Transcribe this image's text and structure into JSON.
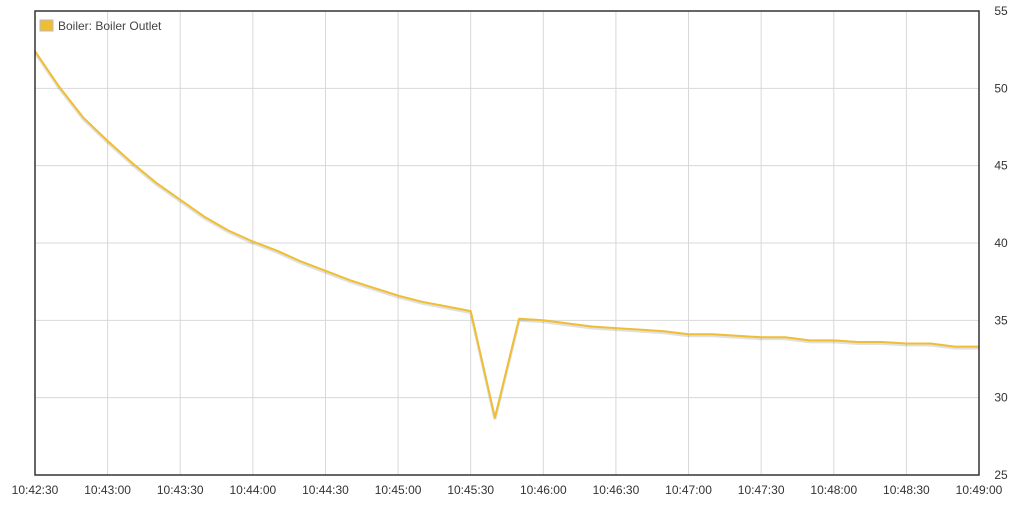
{
  "chart_data": {
    "type": "line",
    "title": "",
    "xlabel": "",
    "ylabel": "",
    "ylim": [
      25,
      55
    ],
    "y_axis_position": "right",
    "y_ticks": [
      "25",
      "30",
      "35",
      "40",
      "45",
      "50",
      "55"
    ],
    "x_ticks": [
      "10:42:30",
      "10:43:00",
      "10:43:30",
      "10:44:00",
      "10:44:30",
      "10:45:00",
      "10:45:30",
      "10:46:00",
      "10:46:30",
      "10:47:00",
      "10:47:30",
      "10:48:00",
      "10:48:30",
      "10:49:00"
    ],
    "grid": true,
    "legend_position": "top-left",
    "series": [
      {
        "name": "Boiler: Boiler Outlet",
        "color": "#f0be32",
        "x": [
          "10:42:30",
          "10:42:40",
          "10:42:50",
          "10:43:00",
          "10:43:10",
          "10:43:20",
          "10:43:30",
          "10:43:40",
          "10:43:50",
          "10:44:00",
          "10:44:10",
          "10:44:20",
          "10:44:30",
          "10:44:40",
          "10:44:50",
          "10:45:00",
          "10:45:10",
          "10:45:20",
          "10:45:30",
          "10:45:40",
          "10:45:50",
          "10:46:00",
          "10:46:10",
          "10:46:20",
          "10:46:30",
          "10:46:40",
          "10:46:50",
          "10:47:00",
          "10:47:10",
          "10:47:20",
          "10:47:30",
          "10:47:40",
          "10:47:50",
          "10:48:00",
          "10:48:10",
          "10:48:20",
          "10:48:30",
          "10:48:40",
          "10:48:50",
          "10:49:00"
        ],
        "values": [
          52.4,
          50.1,
          48.1,
          46.6,
          45.2,
          43.9,
          42.8,
          41.7,
          40.8,
          40.1,
          39.5,
          38.8,
          38.2,
          37.6,
          37.1,
          36.6,
          36.2,
          35.9,
          35.6,
          28.7,
          35.1,
          35.0,
          34.8,
          34.6,
          34.5,
          34.4,
          34.3,
          34.1,
          34.1,
          34.0,
          33.9,
          33.9,
          33.7,
          33.7,
          33.6,
          33.6,
          33.5,
          33.5,
          33.3,
          33.3
        ]
      }
    ]
  }
}
